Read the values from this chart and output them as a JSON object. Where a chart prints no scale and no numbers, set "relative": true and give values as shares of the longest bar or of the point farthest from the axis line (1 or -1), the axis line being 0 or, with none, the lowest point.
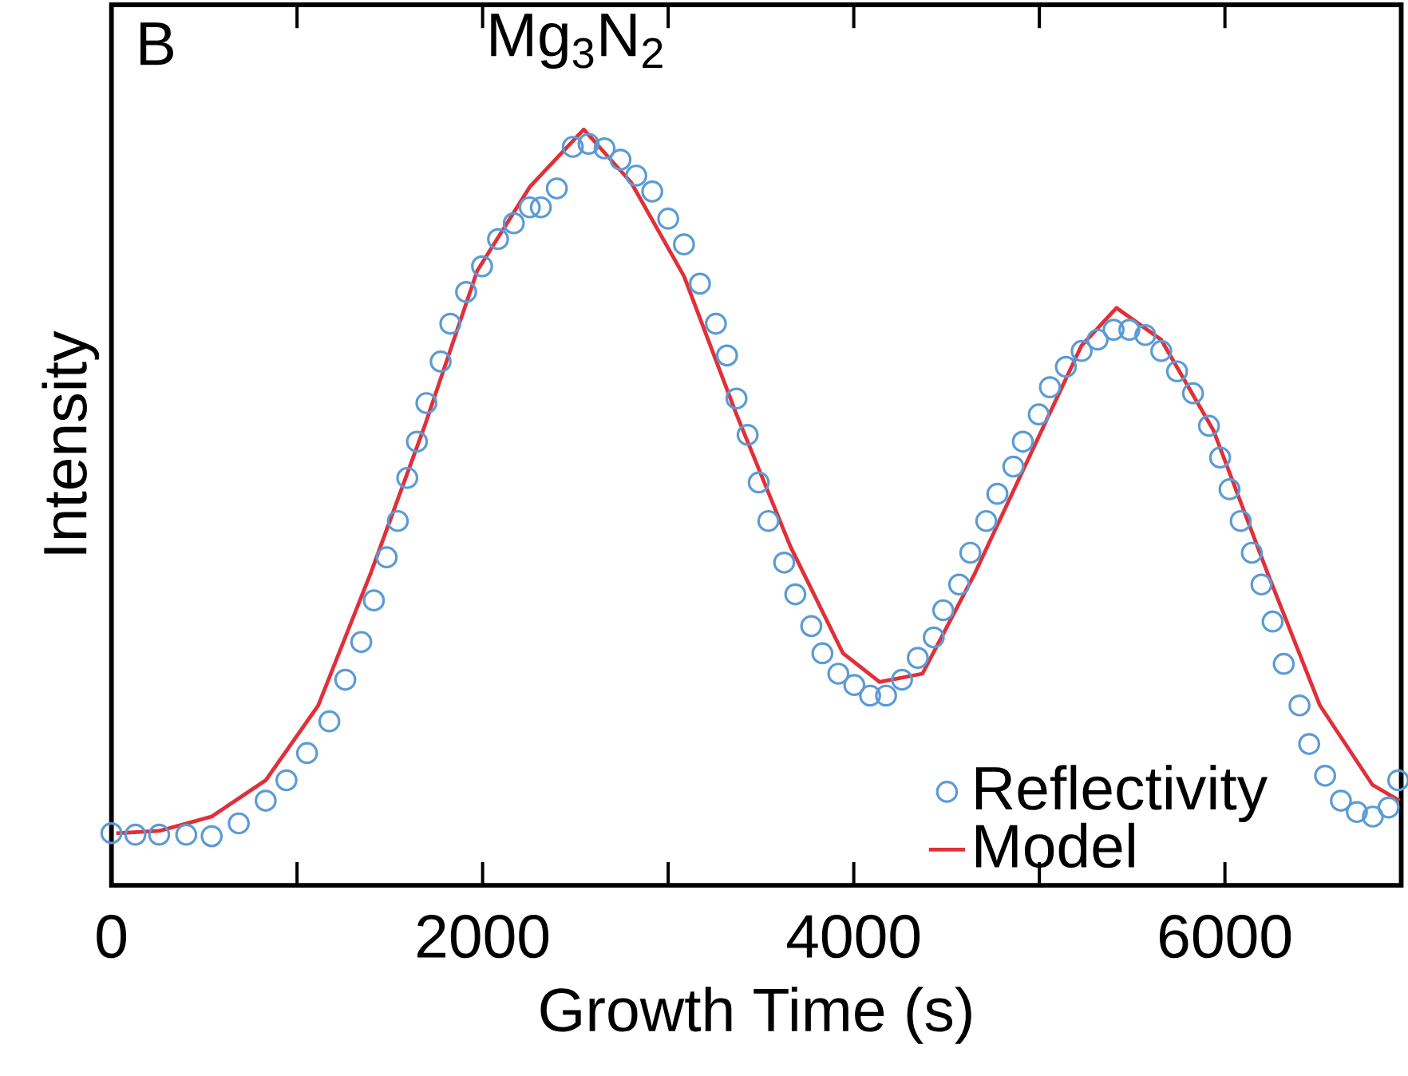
{
  "chart_data": {
    "type": "scatter",
    "relative": true,
    "xlabel": "Growth Time (s)",
    "ylabel": "Intensity",
    "annotations": [
      "B",
      "Mg$_{3}$N$_{2}$"
    ],
    "xlim": [
      0,
      6950
    ],
    "xticks": [
      0,
      {
        "value": 1000,
        "label": null
      },
      2000,
      {
        "value": 3000,
        "label": null
      },
      4000,
      {
        "value": 5000,
        "label": null
      },
      6000
    ],
    "legend": "bottom right",
    "series": [
      {
        "name": "Reflectivity",
        "marker": "circle",
        "color": "#5b9bd5",
        "x": [
          0,
          129,
          257,
          403,
          540,
          686,
          831,
          943,
          1054,
          1174,
          1260,
          1346,
          1414,
          1483,
          1543,
          1594,
          1646,
          1697,
          1774,
          1826,
          1911,
          1997,
          2083,
          2168,
          2254,
          2314,
          2400,
          2486,
          2571,
          2657,
          2743,
          2828,
          2914,
          3000,
          3085,
          3171,
          3257,
          3317,
          3368,
          3428,
          3488,
          3540,
          3625,
          3685,
          3771,
          3831,
          3917,
          4003,
          4088,
          4174,
          4260,
          4345,
          4431,
          4482,
          4568,
          4628,
          4714,
          4774,
          4860,
          4911,
          4997,
          5057,
          5143,
          5228,
          5314,
          5400,
          5485,
          5571,
          5657,
          5742,
          5828,
          5914,
          5974,
          6025,
          6085,
          6145,
          6197,
          6257,
          6317,
          6402,
          6454,
          6540,
          6625,
          6711,
          6797,
          6882,
          6934
        ],
        "values": [
          0.069,
          0.067,
          0.067,
          0.067,
          0.065,
          0.082,
          0.112,
          0.139,
          0.175,
          0.217,
          0.272,
          0.322,
          0.377,
          0.434,
          0.482,
          0.539,
          0.587,
          0.638,
          0.693,
          0.743,
          0.785,
          0.819,
          0.855,
          0.876,
          0.897,
          0.897,
          0.922,
          0.977,
          0.981,
          0.975,
          0.96,
          0.939,
          0.918,
          0.882,
          0.848,
          0.796,
          0.743,
          0.701,
          0.644,
          0.596,
          0.533,
          0.482,
          0.427,
          0.385,
          0.343,
          0.307,
          0.28,
          0.265,
          0.251,
          0.251,
          0.272,
          0.301,
          0.328,
          0.364,
          0.398,
          0.44,
          0.482,
          0.518,
          0.554,
          0.587,
          0.623,
          0.659,
          0.686,
          0.707,
          0.722,
          0.735,
          0.735,
          0.728,
          0.707,
          0.68,
          0.651,
          0.608,
          0.566,
          0.524,
          0.482,
          0.44,
          0.398,
          0.349,
          0.293,
          0.238,
          0.187,
          0.145,
          0.112,
          0.097,
          0.091,
          0.103,
          0.139
        ]
      },
      {
        "name": "Model",
        "type": "line",
        "marker": "none",
        "line_style": "solid",
        "color": "#e0303a",
        "x": [
          26,
          257,
          540,
          831,
          1114,
          1397,
          1688,
          1971,
          2254,
          2545,
          2800,
          3085,
          3368,
          3659,
          3942,
          4139,
          4370,
          4653,
          4944,
          5227,
          5416,
          5656,
          5938,
          6230,
          6512,
          6795,
          6941
        ],
        "values": [
          0.069,
          0.072,
          0.091,
          0.139,
          0.238,
          0.413,
          0.608,
          0.813,
          0.924,
          1,
          0.93,
          0.806,
          0.623,
          0.448,
          0.307,
          0.269,
          0.28,
          0.413,
          0.566,
          0.714,
          0.764,
          0.722,
          0.602,
          0.413,
          0.238,
          0.133,
          0.112
        ]
      }
    ]
  }
}
